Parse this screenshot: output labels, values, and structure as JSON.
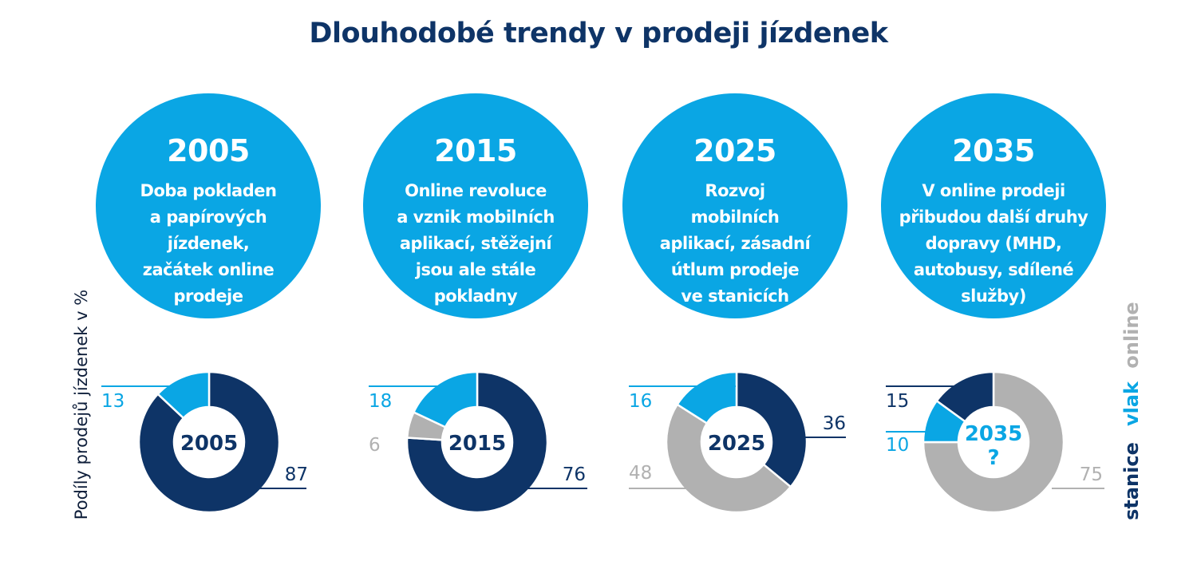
{
  "title": "Dlouhodobé trendy v prodeji jízdenek",
  "y_axis_label": "Podíly prodejů jízdenek v %",
  "colors": {
    "online": "#b1b1b1",
    "vlak": "#0aa6e4",
    "stanice": "#0e3467",
    "circle": "#0aa6e4",
    "title": "#0e3467"
  },
  "legend": [
    {
      "name": "online",
      "color": "#b1b1b1"
    },
    {
      "name": "vlak",
      "color": "#0aa6e4"
    },
    {
      "name": "stanice",
      "color": "#0e3467"
    }
  ],
  "eras": [
    {
      "year": "2005",
      "lines": [
        "Doba pokladen",
        "a papírových",
        "jízdenek,",
        "začátek online",
        "prodeje"
      ]
    },
    {
      "year": "2015",
      "lines": [
        "Online revoluce",
        "a vznik mobilních",
        "aplikací, stěžejní",
        "jsou ale stále",
        "pokladny"
      ]
    },
    {
      "year": "2025",
      "lines": [
        "Rozvoj",
        "mobilních",
        "aplikací, zásadní",
        "útlum prodeje",
        "ve stanicích"
      ]
    },
    {
      "year": "2035",
      "lines": [
        "V online prodeji",
        "přibudou další druhy",
        "dopravy (MHD,",
        "autobusy, sdílené",
        "služby)"
      ]
    }
  ],
  "chart_data": {
    "type": "donut",
    "series_names": [
      "stanice",
      "online",
      "vlak"
    ],
    "charts": [
      {
        "center_label": "2005",
        "center_sub": "",
        "segments": [
          {
            "name": "stanice",
            "value": 87,
            "label": "87"
          },
          {
            "name": "online",
            "value": 0,
            "label": ""
          },
          {
            "name": "vlak",
            "value": 13,
            "label": "13"
          }
        ]
      },
      {
        "center_label": "2015",
        "center_sub": "",
        "segments": [
          {
            "name": "stanice",
            "value": 76,
            "label": "76"
          },
          {
            "name": "online",
            "value": 6,
            "label": "6"
          },
          {
            "name": "vlak",
            "value": 18,
            "label": "18"
          }
        ]
      },
      {
        "center_label": "2025",
        "center_sub": "",
        "segments": [
          {
            "name": "stanice",
            "value": 36,
            "label": "36"
          },
          {
            "name": "online",
            "value": 48,
            "label": "48"
          },
          {
            "name": "vlak",
            "value": 16,
            "label": "16"
          }
        ]
      },
      {
        "center_label": "2035",
        "center_sub": "?",
        "segments": [
          {
            "name": "online",
            "value": 75,
            "label": "75"
          },
          {
            "name": "vlak",
            "value": 10,
            "label": "10"
          },
          {
            "name": "stanice",
            "value": 15,
            "label": "15"
          }
        ]
      }
    ]
  }
}
